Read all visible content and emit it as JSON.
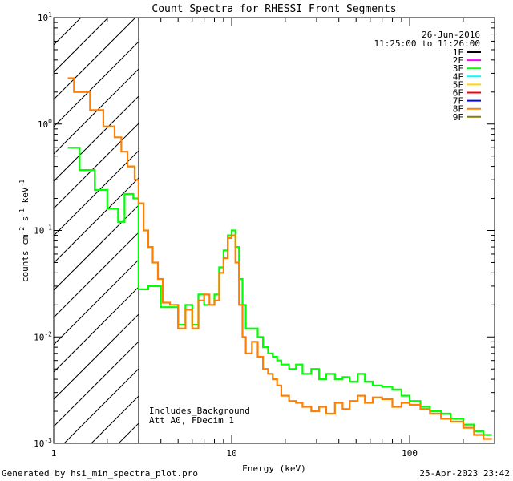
{
  "chart_data": {
    "type": "line",
    "title": "Count Spectra for RHESSI Front Segments",
    "xlabel": "Energy (keV)",
    "ylabel_base": "counts cm",
    "ylabel_s": " s",
    "ylabel_kev": " keV",
    "ylabel_exp": "-2",
    "ylabel_exp2": "-1",
    "ylabel_exp3": "-1",
    "x_scale": "log",
    "y_scale": "log",
    "xlim": [
      1,
      300
    ],
    "ylim": [
      0.001,
      10
    ],
    "x_ticks": [
      {
        "value": 1,
        "label": "1"
      },
      {
        "value": 10,
        "label": "10"
      },
      {
        "value": 100,
        "label": "100"
      }
    ],
    "y_ticks": [
      {
        "value": 10,
        "base": "10",
        "exp": "1"
      },
      {
        "value": 1,
        "base": "10",
        "exp": "0"
      },
      {
        "value": 0.1,
        "base": "10",
        "exp": "-1"
      },
      {
        "value": 0.01,
        "base": "10",
        "exp": "-2"
      },
      {
        "value": 0.001,
        "base": "10",
        "exp": "-3"
      }
    ],
    "date": "26-Jun-2016",
    "time_range": "11:25:00 to 11:26:00",
    "attenuator_boundary_keV": 3,
    "annotations": [
      "Includes_Background",
      "Att A0, FDecim 1"
    ],
    "legend": [
      {
        "name": "1F",
        "color": "#000000"
      },
      {
        "name": "2F",
        "color": "#ff00ff"
      },
      {
        "name": "3F",
        "color": "#00ff00"
      },
      {
        "name": "4F",
        "color": "#00ffff"
      },
      {
        "name": "5F",
        "color": "#ffd700"
      },
      {
        "name": "6F",
        "color": "#ff0000"
      },
      {
        "name": "7F",
        "color": "#0000ff"
      },
      {
        "name": "8F",
        "color": "#ff8000"
      },
      {
        "name": "9F",
        "color": "#808000"
      }
    ],
    "series": [
      {
        "name": "3F",
        "color": "#00ff00",
        "points": [
          [
            1.2,
            0.6
          ],
          [
            1.4,
            0.6
          ],
          [
            1.4,
            0.37
          ],
          [
            1.7,
            0.37
          ],
          [
            1.7,
            0.24
          ],
          [
            2.0,
            0.24
          ],
          [
            2.0,
            0.16
          ],
          [
            2.3,
            0.16
          ],
          [
            2.3,
            0.12
          ],
          [
            2.5,
            0.12
          ],
          [
            2.5,
            0.22
          ],
          [
            2.8,
            0.22
          ],
          [
            2.8,
            0.2
          ],
          [
            3.0,
            0.2
          ],
          [
            3.0,
            0.028
          ],
          [
            3.4,
            0.028
          ],
          [
            3.4,
            0.03
          ],
          [
            4.0,
            0.03
          ],
          [
            4.0,
            0.019
          ],
          [
            4.5,
            0.019
          ],
          [
            4.5,
            0.019
          ],
          [
            5.0,
            0.019
          ],
          [
            5.0,
            0.013
          ],
          [
            5.5,
            0.013
          ],
          [
            5.5,
            0.02
          ],
          [
            6.0,
            0.02
          ],
          [
            6.0,
            0.013
          ],
          [
            6.5,
            0.013
          ],
          [
            6.5,
            0.025
          ],
          [
            7.0,
            0.025
          ],
          [
            7.0,
            0.02
          ],
          [
            7.5,
            0.02
          ],
          [
            7.5,
            0.02
          ],
          [
            8.0,
            0.02
          ],
          [
            8.0,
            0.025
          ],
          [
            8.5,
            0.025
          ],
          [
            8.5,
            0.045
          ],
          [
            9.0,
            0.045
          ],
          [
            9.0,
            0.065
          ],
          [
            9.5,
            0.065
          ],
          [
            9.5,
            0.09
          ],
          [
            10.0,
            0.09
          ],
          [
            10.0,
            0.1
          ],
          [
            10.5,
            0.1
          ],
          [
            10.5,
            0.07
          ],
          [
            11.0,
            0.07
          ],
          [
            11.0,
            0.035
          ],
          [
            11.5,
            0.035
          ],
          [
            11.5,
            0.02
          ],
          [
            12.0,
            0.02
          ],
          [
            12.0,
            0.012
          ],
          [
            13.0,
            0.012
          ],
          [
            13.0,
            0.012
          ],
          [
            14.0,
            0.012
          ],
          [
            14.0,
            0.01
          ],
          [
            15.0,
            0.01
          ],
          [
            15.0,
            0.008
          ],
          [
            16.0,
            0.008
          ],
          [
            16.0,
            0.007
          ],
          [
            17.0,
            0.007
          ],
          [
            17.0,
            0.0065
          ],
          [
            18.0,
            0.0065
          ],
          [
            18.0,
            0.006
          ],
          [
            19.0,
            0.006
          ],
          [
            19.0,
            0.0055
          ],
          [
            21.0,
            0.0055
          ],
          [
            21.0,
            0.005
          ],
          [
            23.0,
            0.005
          ],
          [
            23.0,
            0.0055
          ],
          [
            25.0,
            0.0055
          ],
          [
            25.0,
            0.0045
          ],
          [
            28.0,
            0.0045
          ],
          [
            28.0,
            0.005
          ],
          [
            31.0,
            0.005
          ],
          [
            31.0,
            0.004
          ],
          [
            34.0,
            0.004
          ],
          [
            34.0,
            0.0045
          ],
          [
            38.0,
            0.0045
          ],
          [
            38.0,
            0.004
          ],
          [
            42.0,
            0.004
          ],
          [
            42.0,
            0.0042
          ],
          [
            46.0,
            0.0042
          ],
          [
            46.0,
            0.0038
          ],
          [
            51.0,
            0.0038
          ],
          [
            51.0,
            0.0045
          ],
          [
            56.0,
            0.0045
          ],
          [
            56.0,
            0.0038
          ],
          [
            62.0,
            0.0038
          ],
          [
            62.0,
            0.0035
          ],
          [
            70.0,
            0.0035
          ],
          [
            70.0,
            0.0034
          ],
          [
            80.0,
            0.0034
          ],
          [
            80.0,
            0.0032
          ],
          [
            90.0,
            0.0032
          ],
          [
            90.0,
            0.0028
          ],
          [
            100.0,
            0.0028
          ],
          [
            100.0,
            0.0025
          ],
          [
            115.0,
            0.0025
          ],
          [
            115.0,
            0.0022
          ],
          [
            130.0,
            0.0022
          ],
          [
            130.0,
            0.002
          ],
          [
            150.0,
            0.002
          ],
          [
            150.0,
            0.0019
          ],
          [
            170.0,
            0.0019
          ],
          [
            170.0,
            0.0017
          ],
          [
            200.0,
            0.0017
          ],
          [
            200.0,
            0.0015
          ],
          [
            230.0,
            0.0015
          ],
          [
            230.0,
            0.0013
          ],
          [
            260.0,
            0.0013
          ],
          [
            260.0,
            0.0012
          ],
          [
            290.0,
            0.0012
          ]
        ]
      },
      {
        "name": "8F",
        "color": "#ff8000",
        "points": [
          [
            1.2,
            2.7
          ],
          [
            1.3,
            2.7
          ],
          [
            1.3,
            2.0
          ],
          [
            1.6,
            2.0
          ],
          [
            1.6,
            1.35
          ],
          [
            1.9,
            1.35
          ],
          [
            1.9,
            0.95
          ],
          [
            2.2,
            0.95
          ],
          [
            2.2,
            0.75
          ],
          [
            2.4,
            0.75
          ],
          [
            2.4,
            0.55
          ],
          [
            2.6,
            0.55
          ],
          [
            2.6,
            0.4
          ],
          [
            2.85,
            0.4
          ],
          [
            2.85,
            0.3
          ],
          [
            3.0,
            0.3
          ],
          [
            3.0,
            0.18
          ],
          [
            3.2,
            0.18
          ],
          [
            3.2,
            0.1
          ],
          [
            3.4,
            0.1
          ],
          [
            3.4,
            0.07
          ],
          [
            3.6,
            0.07
          ],
          [
            3.6,
            0.05
          ],
          [
            3.85,
            0.05
          ],
          [
            3.85,
            0.035
          ],
          [
            4.1,
            0.035
          ],
          [
            4.1,
            0.021
          ],
          [
            4.5,
            0.021
          ],
          [
            4.5,
            0.02
          ],
          [
            5.0,
            0.02
          ],
          [
            5.0,
            0.012
          ],
          [
            5.5,
            0.012
          ],
          [
            5.5,
            0.018
          ],
          [
            6.0,
            0.018
          ],
          [
            6.0,
            0.012
          ],
          [
            6.5,
            0.012
          ],
          [
            6.5,
            0.022
          ],
          [
            7.0,
            0.022
          ],
          [
            7.0,
            0.025
          ],
          [
            7.5,
            0.025
          ],
          [
            7.5,
            0.02
          ],
          [
            8.0,
            0.02
          ],
          [
            8.0,
            0.022
          ],
          [
            8.5,
            0.022
          ],
          [
            8.5,
            0.04
          ],
          [
            9.0,
            0.04
          ],
          [
            9.0,
            0.055
          ],
          [
            9.5,
            0.055
          ],
          [
            9.5,
            0.085
          ],
          [
            10.0,
            0.085
          ],
          [
            10.0,
            0.09
          ],
          [
            10.5,
            0.09
          ],
          [
            10.5,
            0.05
          ],
          [
            11.0,
            0.05
          ],
          [
            11.0,
            0.02
          ],
          [
            11.5,
            0.02
          ],
          [
            11.5,
            0.01
          ],
          [
            12.0,
            0.01
          ],
          [
            12.0,
            0.007
          ],
          [
            13.0,
            0.007
          ],
          [
            13.0,
            0.009
          ],
          [
            14.0,
            0.009
          ],
          [
            14.0,
            0.0065
          ],
          [
            15.0,
            0.0065
          ],
          [
            15.0,
            0.005
          ],
          [
            16.0,
            0.005
          ],
          [
            16.0,
            0.0045
          ],
          [
            17.0,
            0.0045
          ],
          [
            17.0,
            0.004
          ],
          [
            18.0,
            0.004
          ],
          [
            18.0,
            0.0035
          ],
          [
            19.0,
            0.0035
          ],
          [
            19.0,
            0.0028
          ],
          [
            21.0,
            0.0028
          ],
          [
            21.0,
            0.0025
          ],
          [
            23.0,
            0.0025
          ],
          [
            23.0,
            0.0024
          ],
          [
            25.0,
            0.0024
          ],
          [
            25.0,
            0.0022
          ],
          [
            28.0,
            0.0022
          ],
          [
            28.0,
            0.002
          ],
          [
            31.0,
            0.002
          ],
          [
            31.0,
            0.0022
          ],
          [
            34.0,
            0.0022
          ],
          [
            34.0,
            0.0019
          ],
          [
            38.0,
            0.0019
          ],
          [
            38.0,
            0.0024
          ],
          [
            42.0,
            0.0024
          ],
          [
            42.0,
            0.0021
          ],
          [
            46.0,
            0.0021
          ],
          [
            46.0,
            0.0025
          ],
          [
            51.0,
            0.0025
          ],
          [
            51.0,
            0.0028
          ],
          [
            56.0,
            0.0028
          ],
          [
            56.0,
            0.0024
          ],
          [
            62.0,
            0.0024
          ],
          [
            62.0,
            0.0027
          ],
          [
            70.0,
            0.0027
          ],
          [
            70.0,
            0.0026
          ],
          [
            80.0,
            0.0026
          ],
          [
            80.0,
            0.0022
          ],
          [
            90.0,
            0.0022
          ],
          [
            90.0,
            0.0024
          ],
          [
            100.0,
            0.0024
          ],
          [
            100.0,
            0.0023
          ],
          [
            115.0,
            0.0023
          ],
          [
            115.0,
            0.0021
          ],
          [
            130.0,
            0.0021
          ],
          [
            130.0,
            0.0019
          ],
          [
            150.0,
            0.0019
          ],
          [
            150.0,
            0.0017
          ],
          [
            170.0,
            0.0017
          ],
          [
            170.0,
            0.0016
          ],
          [
            200.0,
            0.0016
          ],
          [
            200.0,
            0.0014
          ],
          [
            230.0,
            0.0014
          ],
          [
            230.0,
            0.0012
          ],
          [
            260.0,
            0.0012
          ],
          [
            260.0,
            0.0011
          ],
          [
            290.0,
            0.0011
          ]
        ]
      }
    ]
  },
  "footer": {
    "generated_by": "Generated by hsi_min_spectra_plot.pro",
    "timestamp": "25-Apr-2023 23:42"
  }
}
